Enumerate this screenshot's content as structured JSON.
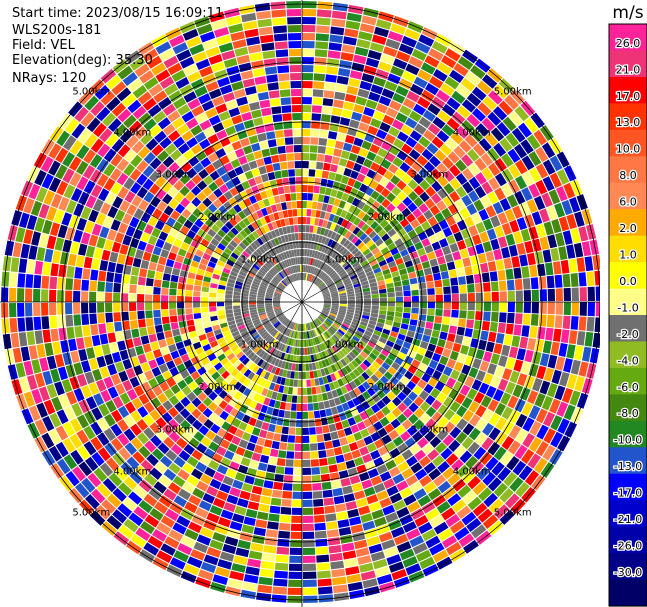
{
  "info": {
    "start_time": "Start time: 2023/08/15 16:09:11",
    "instrument": "WLS200s-181",
    "field": "Field: VEL",
    "elevation": "Elevation(deg): 35.30",
    "nrays": "NRays: 120"
  },
  "chart_data": {
    "type": "heatmap",
    "projection": "polar-ppi",
    "field": "VEL",
    "units": "m/s",
    "n_rays": 120,
    "range_rings_km": [
      "1.00km",
      "2.00km",
      "3.00km",
      "4.00km",
      "5.00km"
    ],
    "crosshair": true,
    "colorbar": {
      "label": "m/s",
      "placement": "right",
      "ticks": [
        "26.0",
        "21.0",
        "17.0",
        "13.0",
        "10.0",
        "8.0",
        "6.0",
        "2.0",
        "1.0",
        "0.0",
        "-1.0",
        "-2.0",
        "-4.0",
        "-6.0",
        "-8.0",
        "-10.0",
        "-13.0",
        "-17.0",
        "-21.0",
        "-26.0",
        "-30.0"
      ],
      "colors": [
        "#ff2299",
        "#ee3377",
        "#ff0000",
        "#ff3300",
        "#ff5522",
        "#ff7744",
        "#ff8855",
        "#ffaa00",
        "#ffdd00",
        "#ffff00",
        "#ffff88",
        "#707070",
        "#90bb22",
        "#66aa11",
        "#448811",
        "#228822",
        "#2255cc",
        "#0000ff",
        "#0000cc",
        "#0000aa",
        "#000088",
        "#000066"
      ]
    }
  }
}
